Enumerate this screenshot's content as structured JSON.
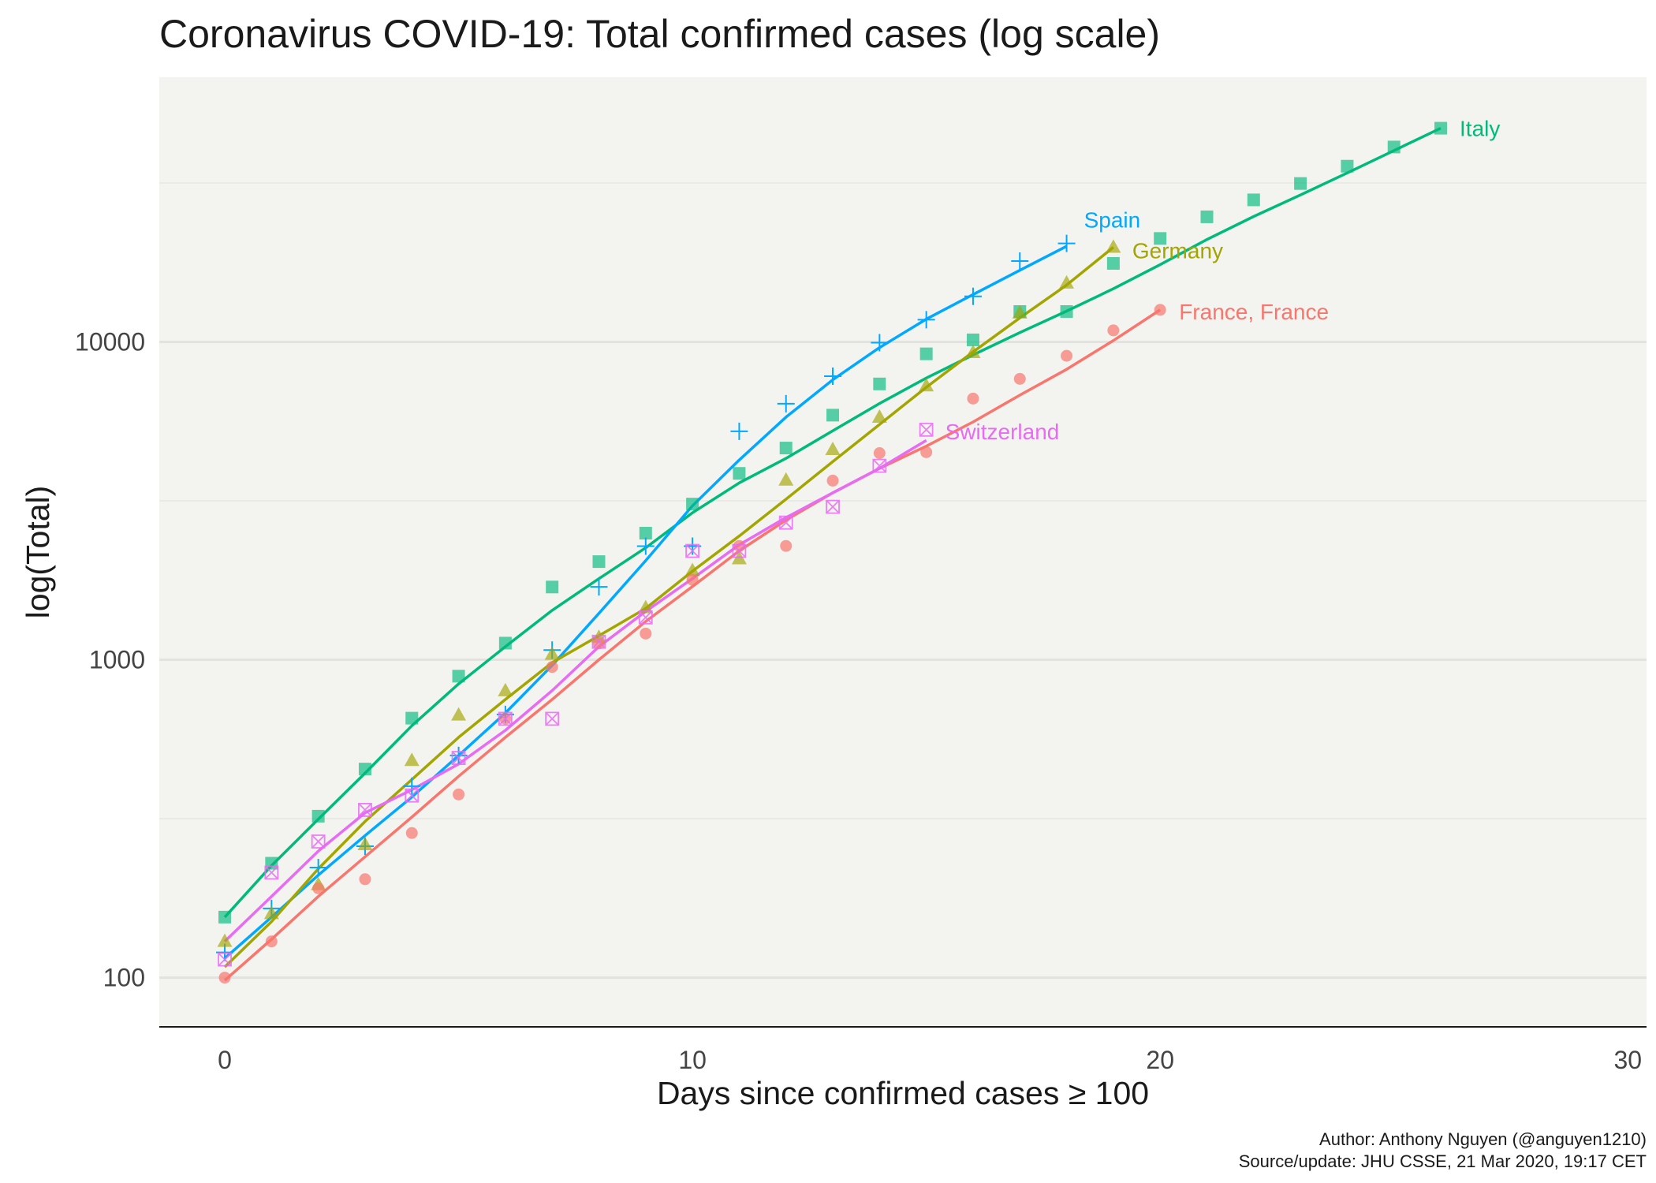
{
  "chart_data": {
    "type": "scatter",
    "title": "Coronavirus COVID-19: Total confirmed cases (log scale)",
    "xlabel": "Days since confirmed cases ≥ 100",
    "ylabel": "log(Total)",
    "x_ticks": [
      0,
      10,
      20,
      30
    ],
    "y_ticks": [
      100,
      1000,
      10000
    ],
    "xlim": [
      -1.4,
      30.4
    ],
    "ylim": [
      70,
      68000
    ],
    "y_scale": "log10",
    "grid": true,
    "legend": "labels at line ends",
    "series": [
      {
        "name": "Italy",
        "color": "#00BA7C",
        "marker": "square",
        "x": [
          0,
          1,
          2,
          3,
          4,
          5,
          6,
          7,
          8,
          9,
          10,
          11,
          12,
          13,
          14,
          15,
          16,
          17,
          18,
          19,
          20,
          21,
          22,
          23,
          24,
          25,
          26
        ],
        "y": [
          155,
          229,
          322,
          453,
          655,
          888,
          1128,
          1694,
          2036,
          2502,
          3089,
          3858,
          4636,
          5883,
          7375,
          9172,
          10149,
          12462,
          12462,
          17660,
          21157,
          24747,
          27980,
          31506,
          35713,
          41035,
          47021
        ],
        "fit": [
          155,
          225,
          315,
          440,
          620,
          840,
          1100,
          1430,
          1800,
          2250,
          2900,
          3600,
          4300,
          5250,
          6400,
          7700,
          9100,
          10700,
          12500,
          14700,
          17500,
          21000,
          24800,
          29000,
          34000,
          40000,
          47021
        ]
      },
      {
        "name": "Spain",
        "color": "#00A9FF",
        "marker": "plus",
        "x": [
          0,
          1,
          2,
          3,
          4,
          5,
          6,
          7,
          8,
          9,
          10,
          11,
          12,
          13,
          14,
          15,
          16,
          17,
          18
        ],
        "y": [
          120,
          165,
          222,
          259,
          400,
          500,
          673,
          1073,
          1695,
          2277,
          2277,
          5232,
          6391,
          7798,
          9942,
          11748,
          13910,
          17963,
          20410
        ],
        "fit": [
          115,
          155,
          210,
          280,
          370,
          500,
          680,
          960,
          1400,
          2050,
          3050,
          4250,
          5800,
          7600,
          9600,
          11800,
          14100,
          16800,
          20000
        ]
      },
      {
        "name": "Germany",
        "color": "#A3A500",
        "marker": "triangle",
        "x": [
          0,
          1,
          2,
          3,
          4,
          5,
          6,
          7,
          8,
          9,
          10,
          11,
          12,
          13,
          14,
          15,
          16,
          17,
          18,
          19
        ],
        "y": [
          130,
          159,
          196,
          262,
          482,
          670,
          799,
          1040,
          1176,
          1457,
          1908,
          2078,
          3675,
          4585,
          5795,
          7272,
          9257,
          12327,
          15320,
          19848
        ],
        "fit": [
          108,
          150,
          220,
          310,
          420,
          570,
          750,
          980,
          1190,
          1450,
          1900,
          2450,
          3200,
          4200,
          5500,
          7200,
          9300,
          11900,
          15100,
          19848
        ]
      },
      {
        "name": "France, France",
        "color": "#F8766D",
        "marker": "circle",
        "x": [
          0,
          1,
          2,
          3,
          4,
          5,
          6,
          7,
          8,
          9,
          10,
          11,
          12,
          13,
          14,
          15,
          16,
          17,
          18,
          19,
          20
        ],
        "y": [
          100,
          130,
          191,
          204,
          285,
          377,
          653,
          949,
          1126,
          1209,
          1784,
          2281,
          2281,
          3661,
          4469,
          4499,
          6633,
          7652,
          9043,
          10871,
          12612
        ],
        "fit": [
          98,
          132,
          180,
          240,
          320,
          430,
          570,
          750,
          1000,
          1320,
          1700,
          2200,
          2750,
          3350,
          4000,
          4700,
          5600,
          6800,
          8200,
          10100,
          12612
        ]
      },
      {
        "name": "Switzerland",
        "color": "#E76BF3",
        "marker": "boxx",
        "x": [
          0,
          1,
          2,
          3,
          4,
          5,
          6,
          7,
          8,
          9,
          10,
          11,
          12,
          13,
          14,
          15
        ],
        "y": [
          114,
          214,
          268,
          337,
          374,
          491,
          652,
          652,
          1139,
          1359,
          2200,
          2200,
          2700,
          3028,
          4075,
          5294
        ],
        "fit": [
          130,
          180,
          250,
          330,
          390,
          470,
          600,
          800,
          1100,
          1420,
          1800,
          2300,
          2800,
          3350,
          4000,
          4900
        ]
      }
    ]
  },
  "caption": {
    "author": "Author: Anthony Nguyen (@anguyen1210)",
    "source": "Source/update: JHU CSSE, 21 Mar 2020, 19:17 CET"
  }
}
